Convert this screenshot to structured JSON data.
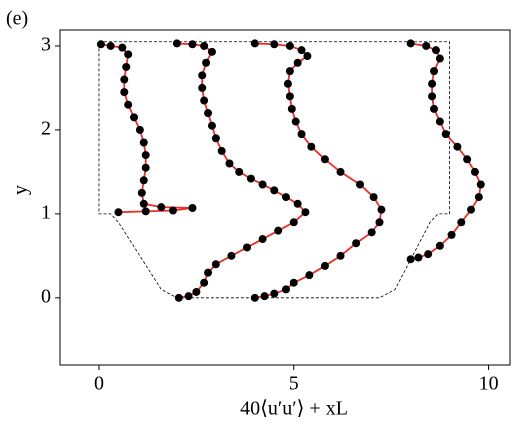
{
  "chart_data": {
    "type": "profiles",
    "annotation": "(e)",
    "xlabel": "40⟨u′u′⟩ + xL",
    "ylabel": "y",
    "xlim": [
      -1,
      10.55
    ],
    "ylim": [
      -0.8,
      3.19
    ],
    "xticks": [
      0,
      5,
      10
    ],
    "yticks": [
      0,
      1,
      2,
      3
    ],
    "line_color": "#e8302a",
    "marker_color": "#000000",
    "boundary_color": "#000000",
    "boundary": {
      "x": [
        0,
        9,
        9,
        8.7,
        8.5,
        7.6,
        7.2,
        2,
        1.6,
        0.5,
        0.3,
        0
      ],
      "y": [
        3.05,
        3.05,
        1,
        1,
        0.9,
        0.1,
        0,
        0,
        0.1,
        0.9,
        1,
        1
      ]
    },
    "series": [
      {
        "x": [
          0.05,
          0.3,
          0.6,
          0.75,
          0.7,
          0.65,
          0.65,
          0.75,
          0.9,
          1.05,
          1.15,
          1.2,
          1.2,
          1.15,
          1.1,
          1.15,
          1.6,
          2.4,
          1.9,
          1.2,
          0.5
        ],
        "y": [
          3.02,
          3.0,
          2.98,
          2.9,
          2.75,
          2.6,
          2.45,
          2.3,
          2.15,
          2.0,
          1.85,
          1.7,
          1.55,
          1.4,
          1.25,
          1.12,
          1.08,
          1.07,
          1.04,
          1.03,
          1.02
        ]
      },
      {
        "x": [
          2.0,
          2.4,
          2.7,
          2.9,
          2.75,
          2.65,
          2.65,
          2.7,
          2.8,
          2.9,
          3.0,
          3.15,
          3.35,
          3.6,
          3.9,
          4.2,
          4.5,
          4.8,
          5.1,
          5.3,
          5.0,
          4.6,
          4.2,
          3.8,
          3.4,
          3.0,
          2.8,
          2.7,
          2.5,
          2.3,
          2.05
        ],
        "y": [
          3.03,
          3.02,
          3.0,
          2.93,
          2.8,
          2.65,
          2.5,
          2.35,
          2.2,
          2.05,
          1.9,
          1.75,
          1.6,
          1.5,
          1.42,
          1.35,
          1.28,
          1.2,
          1.12,
          1.02,
          0.9,
          0.8,
          0.7,
          0.6,
          0.5,
          0.4,
          0.3,
          0.18,
          0.07,
          0.02,
          0.0
        ]
      },
      {
        "x": [
          4.0,
          4.5,
          4.9,
          5.2,
          5.35,
          5.1,
          4.9,
          4.85,
          4.9,
          4.95,
          5.05,
          5.2,
          5.45,
          5.8,
          6.2,
          6.7,
          7.05,
          7.25,
          7.2,
          7.0,
          6.6,
          6.2,
          5.8,
          5.4,
          5.0,
          4.8,
          4.5,
          4.25,
          4.0
        ],
        "y": [
          3.03,
          3.02,
          3.0,
          2.95,
          2.88,
          2.8,
          2.7,
          2.55,
          2.4,
          2.25,
          2.1,
          1.95,
          1.8,
          1.65,
          1.5,
          1.35,
          1.2,
          1.05,
          0.9,
          0.78,
          0.65,
          0.5,
          0.38,
          0.27,
          0.18,
          0.1,
          0.05,
          0.02,
          0.0
        ]
      },
      {
        "x": [
          8.0,
          8.4,
          8.65,
          8.75,
          8.6,
          8.55,
          8.55,
          8.6,
          8.75,
          8.9,
          9.2,
          9.45,
          9.65,
          9.8,
          9.75,
          9.55,
          9.3,
          9.05,
          8.75,
          8.45,
          8.2,
          8.0
        ],
        "y": [
          3.03,
          3.0,
          2.95,
          2.85,
          2.7,
          2.55,
          2.4,
          2.25,
          2.1,
          1.95,
          1.8,
          1.65,
          1.5,
          1.35,
          1.2,
          1.05,
          0.9,
          0.75,
          0.62,
          0.52,
          0.48,
          0.46
        ]
      }
    ]
  }
}
